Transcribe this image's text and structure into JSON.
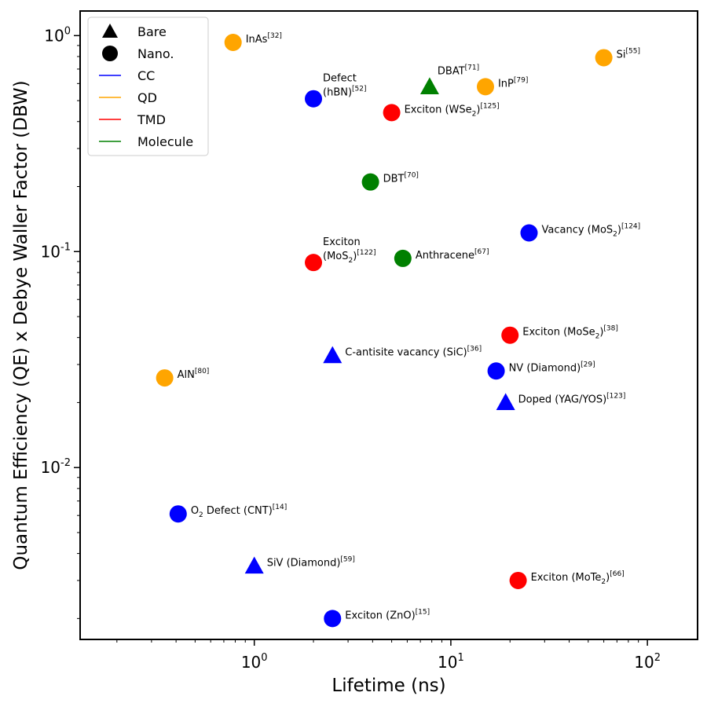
{
  "chart_data": {
    "type": "scatter",
    "xlabel": "Lifetime (ns)",
    "ylabel": "Quantum Efficiency (QE) x Debye Waller Factor (DBW)",
    "x_scale": "log",
    "y_scale": "log",
    "xlim": [
      0.13,
      180
    ],
    "ylim": [
      0.0016,
      1.3
    ],
    "grid": false,
    "legend_position": "top-left",
    "x_ticks": [
      {
        "base": "10",
        "exp": "0",
        "value": 1
      },
      {
        "base": "10",
        "exp": "1",
        "value": 10
      },
      {
        "base": "10",
        "exp": "2",
        "value": 100
      }
    ],
    "y_ticks": [
      {
        "base": "10",
        "exp": "-2",
        "value": 0.01
      },
      {
        "base": "10",
        "exp": "-1",
        "value": 0.1
      },
      {
        "base": "10",
        "exp": "0",
        "value": 1
      }
    ],
    "legend": [
      {
        "label": "Bare",
        "kind": "marker",
        "marker": "triangle",
        "color": "#000000"
      },
      {
        "label": "Nano.",
        "kind": "marker",
        "marker": "circle",
        "color": "#000000"
      },
      {
        "label": "CC",
        "kind": "line",
        "color": "#0000ff"
      },
      {
        "label": "QD",
        "kind": "line",
        "color": "#ffa500"
      },
      {
        "label": "TMD",
        "kind": "line",
        "color": "#ff0000"
      },
      {
        "label": "Molecule",
        "kind": "line",
        "color": "#008000"
      }
    ],
    "colors": {
      "CC": "#0000ff",
      "QD": "#ffa500",
      "TMD": "#ff0000",
      "Molecule": "#008000"
    },
    "points": [
      {
        "name": "InAs",
        "ref": "[32]",
        "x": 0.78,
        "y": 0.93,
        "category": "QD",
        "marker": "circle",
        "label": [
          {
            "t": "InAs"
          },
          {
            "t": "[32]",
            "sup": true
          }
        ]
      },
      {
        "name": "Si",
        "ref": "[55]",
        "x": 60,
        "y": 0.79,
        "category": "QD",
        "marker": "circle",
        "label": [
          {
            "t": "Si"
          },
          {
            "t": "[55]",
            "sup": true
          }
        ]
      },
      {
        "name": "DBAT",
        "ref": "[71]",
        "x": 7.8,
        "y": 0.58,
        "category": "Molecule",
        "marker": "triangle",
        "label": [
          {
            "t": "DBAT"
          },
          {
            "t": "[71]",
            "sup": true
          }
        ]
      },
      {
        "name": "InP",
        "ref": "[79]",
        "x": 15,
        "y": 0.58,
        "category": "QD",
        "marker": "circle",
        "label": [
          {
            "t": "InP"
          },
          {
            "t": "[79]",
            "sup": true
          }
        ]
      },
      {
        "name": "Defect (hBN)",
        "ref": "[52]",
        "x": 2.0,
        "y": 0.51,
        "category": "CC",
        "marker": "circle",
        "label_line1": [
          {
            "t": "Defect"
          }
        ],
        "label": [
          {
            "t": "(hBN)"
          },
          {
            "t": "[52]",
            "sup": true
          }
        ]
      },
      {
        "name": "Exciton (WSe2)",
        "ref": "[125]",
        "x": 5.0,
        "y": 0.44,
        "category": "TMD",
        "marker": "circle",
        "label": [
          {
            "t": "Exciton  (WSe"
          },
          {
            "t": "2",
            "sub": true
          },
          {
            "t": ")"
          },
          {
            "t": "[125]",
            "sup": true
          }
        ]
      },
      {
        "name": "DBT",
        "ref": "[70]",
        "x": 3.9,
        "y": 0.21,
        "category": "Molecule",
        "marker": "circle",
        "label": [
          {
            "t": "DBT"
          },
          {
            "t": "[70]",
            "sup": true
          }
        ]
      },
      {
        "name": "Vacancy (MoS2)",
        "ref": "[124]",
        "x": 25,
        "y": 0.122,
        "category": "CC",
        "marker": "circle",
        "label": [
          {
            "t": "Vacancy (MoS"
          },
          {
            "t": "2",
            "sub": true
          },
          {
            "t": ")"
          },
          {
            "t": "[124]",
            "sup": true
          }
        ]
      },
      {
        "name": "Exciton (MoS2)",
        "ref": "[122]",
        "x": 2.0,
        "y": 0.089,
        "category": "TMD",
        "marker": "circle",
        "label_line1": [
          {
            "t": "Exciton"
          }
        ],
        "label": [
          {
            "t": "(MoS"
          },
          {
            "t": "2",
            "sub": true
          },
          {
            "t": ")"
          },
          {
            "t": "[122]",
            "sup": true
          }
        ]
      },
      {
        "name": "Anthracene",
        "ref": "[67]",
        "x": 5.7,
        "y": 0.093,
        "category": "Molecule",
        "marker": "circle",
        "label": [
          {
            "t": "Anthracene"
          },
          {
            "t": "[67]",
            "sup": true
          }
        ]
      },
      {
        "name": "Exciton (MoSe2)",
        "ref": "[38]",
        "x": 20,
        "y": 0.041,
        "category": "TMD",
        "marker": "circle",
        "label": [
          {
            "t": "Exciton (MoSe"
          },
          {
            "t": "2",
            "sub": true
          },
          {
            "t": ")"
          },
          {
            "t": "[38]",
            "sup": true
          }
        ]
      },
      {
        "name": "C-antisite vacancy (SiC)",
        "ref": "[36]",
        "x": 2.5,
        "y": 0.033,
        "category": "CC",
        "marker": "triangle",
        "label": [
          {
            "t": "C-antisite vacancy (SiC)"
          },
          {
            "t": "[36]",
            "sup": true
          }
        ]
      },
      {
        "name": "NV (Diamond)",
        "ref": "[29]",
        "x": 17,
        "y": 0.028,
        "category": "CC",
        "marker": "circle",
        "label": [
          {
            "t": "NV (Diamond)"
          },
          {
            "t": "[29]",
            "sup": true
          }
        ]
      },
      {
        "name": "AlN",
        "ref": "[80]",
        "x": 0.35,
        "y": 0.026,
        "category": "QD",
        "marker": "circle",
        "label": [
          {
            "t": "AlN"
          },
          {
            "t": "[80]",
            "sup": true
          }
        ]
      },
      {
        "name": "Doped (YAG/YOS)",
        "ref": "[123]",
        "x": 19,
        "y": 0.02,
        "category": "CC",
        "marker": "triangle",
        "label": [
          {
            "t": "Doped (YAG/YOS)"
          },
          {
            "t": "[123]",
            "sup": true
          }
        ]
      },
      {
        "name": "O2 Defect (CNT)",
        "ref": "[14]",
        "x": 0.41,
        "y": 0.0061,
        "category": "CC",
        "marker": "circle",
        "label": [
          {
            "t": "O"
          },
          {
            "t": "2",
            "sub": true
          },
          {
            "t": " Defect (CNT)"
          },
          {
            "t": "[14]",
            "sup": true
          }
        ]
      },
      {
        "name": "SiV (Diamond)",
        "ref": "[59]",
        "x": 1.0,
        "y": 0.0035,
        "category": "CC",
        "marker": "triangle",
        "label": [
          {
            "t": "SiV (Diamond)"
          },
          {
            "t": "[59]",
            "sup": true
          }
        ]
      },
      {
        "name": "Exciton (MoTe2)",
        "ref": "[66]",
        "x": 22,
        "y": 0.003,
        "category": "TMD",
        "marker": "circle",
        "label": [
          {
            "t": "Exciton (MoTe"
          },
          {
            "t": "2",
            "sub": true
          },
          {
            "t": ")"
          },
          {
            "t": "[66]",
            "sup": true
          }
        ]
      },
      {
        "name": "Exciton (ZnO)",
        "ref": "[15]",
        "x": 2.5,
        "y": 0.002,
        "category": "CC",
        "marker": "circle",
        "label": [
          {
            "t": "Exciton (ZnO)"
          },
          {
            "t": "[15]",
            "sup": true
          }
        ]
      }
    ]
  }
}
